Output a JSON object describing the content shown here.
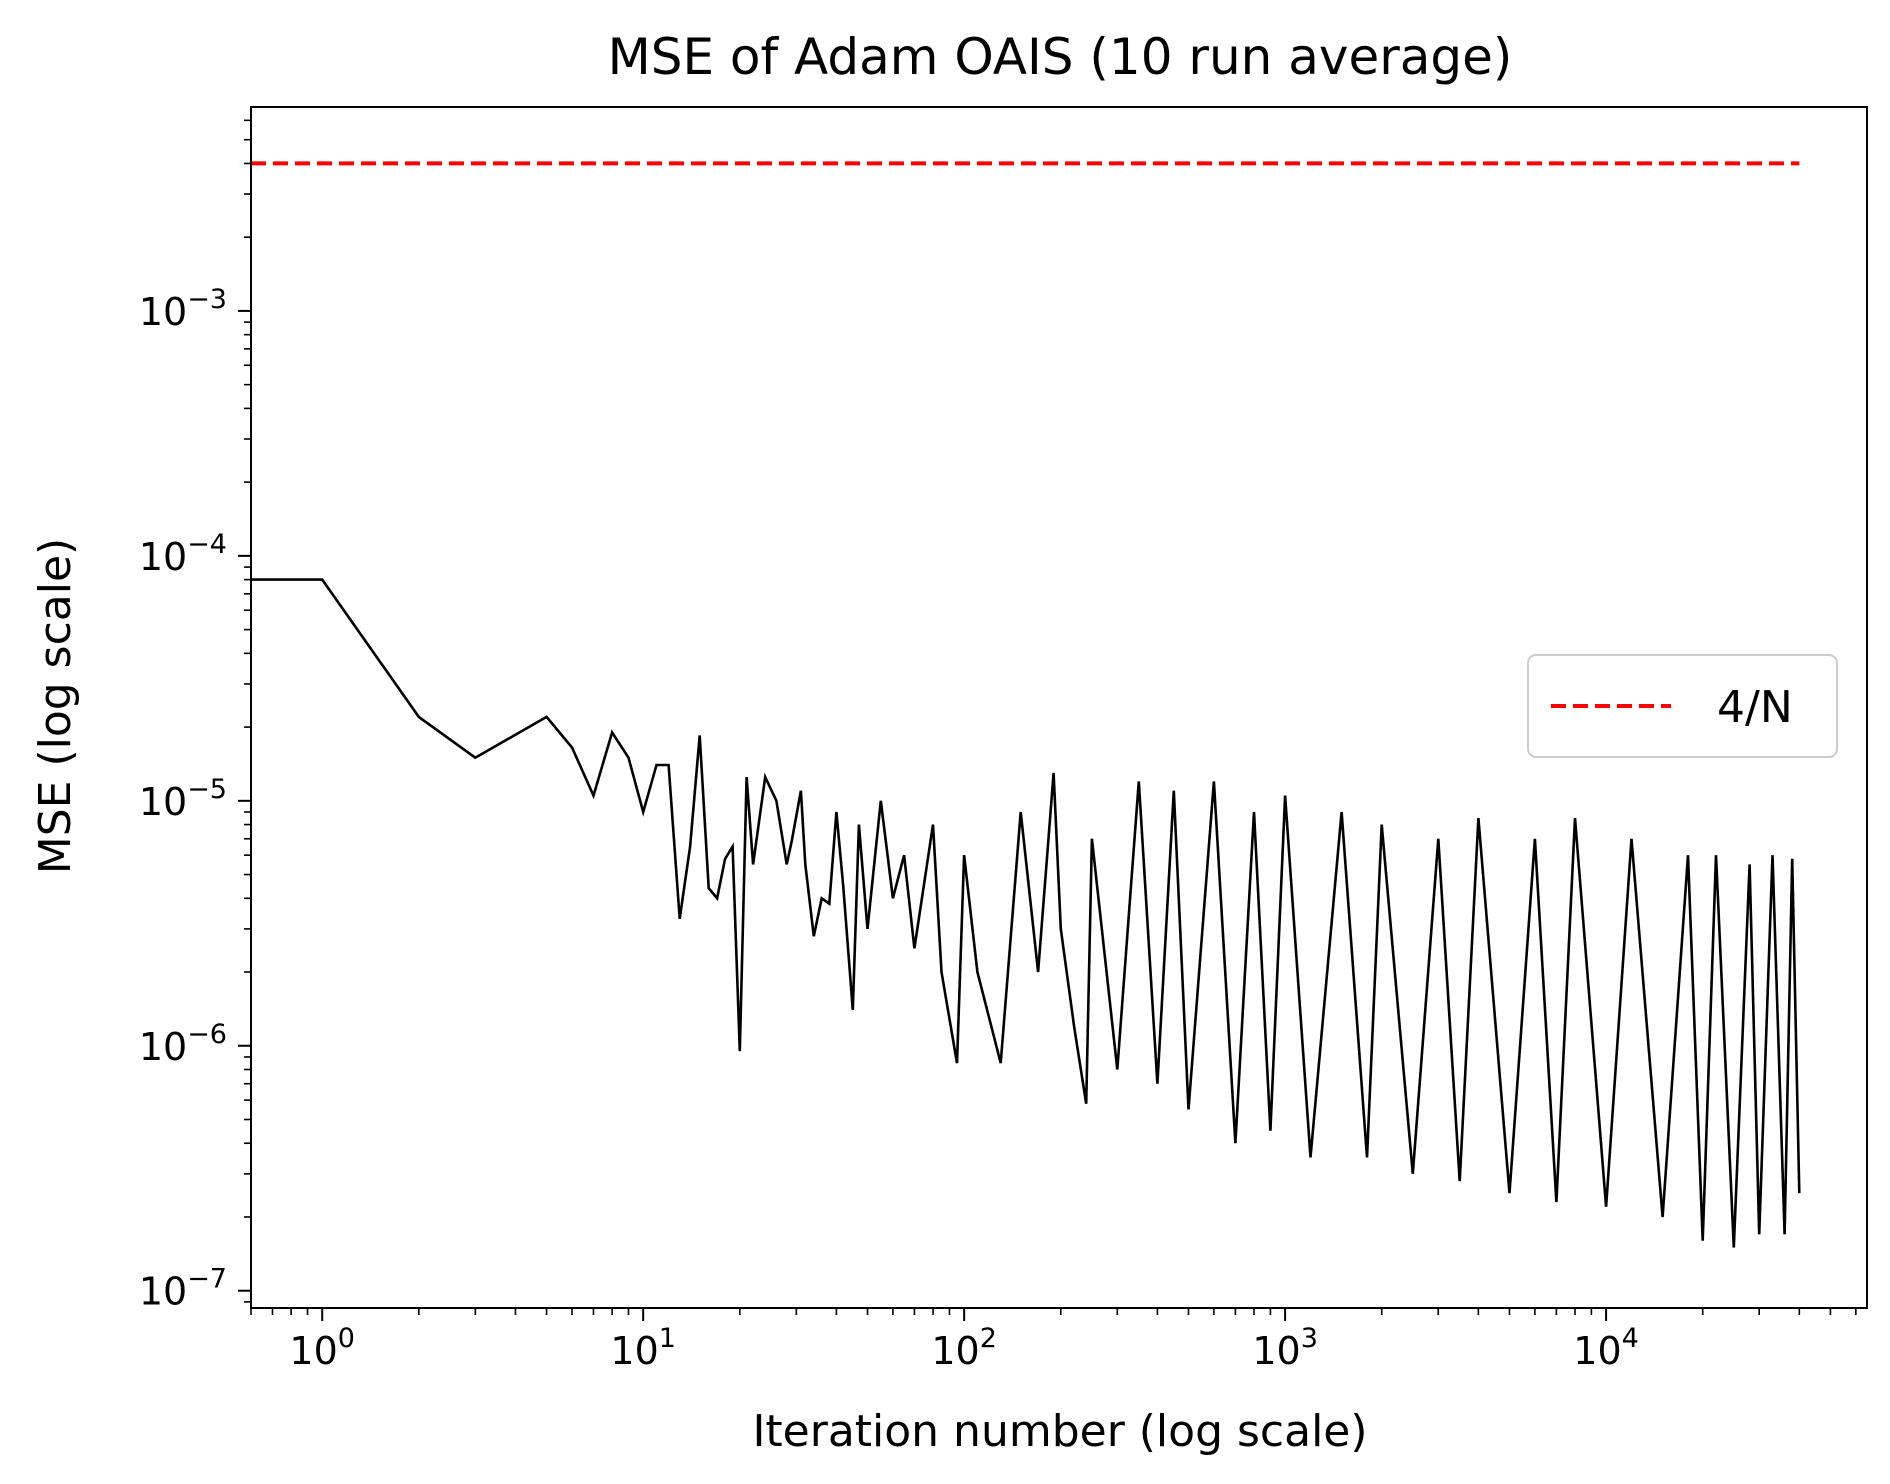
{
  "chart_data": {
    "type": "line",
    "title": "MSE of Adam OAIS (10 run average)",
    "xlabel": "Iteration number (log scale)",
    "ylabel": "MSE (log scale)",
    "xscale": "log",
    "yscale": "log",
    "xlim": [
      0.6,
      65000
    ],
    "ylim": [
      8.5e-08,
      0.0068
    ],
    "grid": false,
    "legend": {
      "placement": "center-right",
      "entries": [
        "4/N"
      ]
    },
    "x_ticks": [
      {
        "value": 1,
        "base": "10",
        "exp": "0"
      },
      {
        "value": 10,
        "base": "10",
        "exp": "1"
      },
      {
        "value": 100,
        "base": "10",
        "exp": "2"
      },
      {
        "value": 1000,
        "base": "10",
        "exp": "3"
      },
      {
        "value": 10000,
        "base": "10",
        "exp": "4"
      }
    ],
    "y_ticks": [
      {
        "value": 1e-07,
        "base": "10",
        "exp": "−7"
      },
      {
        "value": 1e-06,
        "base": "10",
        "exp": "−6"
      },
      {
        "value": 1e-05,
        "base": "10",
        "exp": "−5"
      },
      {
        "value": 0.0001,
        "base": "10",
        "exp": "−4"
      },
      {
        "value": 0.001,
        "base": "10",
        "exp": "−3"
      }
    ],
    "series": [
      {
        "name": "4/N",
        "style": "dashed",
        "color": "#ff0000",
        "x": [
          0.6,
          40000
        ],
        "y": [
          0.004,
          0.004
        ]
      },
      {
        "style": "solid",
        "color": "#000000",
        "x": [
          0.6,
          1,
          2,
          3,
          5,
          6,
          7,
          8,
          9,
          10,
          11,
          12,
          13,
          14,
          15,
          16,
          17,
          18,
          19,
          20,
          21,
          22,
          24,
          26,
          28,
          29,
          31,
          32,
          34,
          36,
          38,
          40,
          42,
          45,
          47,
          50,
          55,
          60,
          65,
          70,
          80,
          85,
          95,
          100,
          110,
          130,
          150,
          170,
          190,
          200,
          220,
          240,
          250,
          300,
          350,
          400,
          450,
          500,
          600,
          700,
          800,
          900,
          1000,
          1200,
          1500,
          1800,
          2000,
          2500,
          3000,
          3500,
          4000,
          5000,
          6000,
          7000,
          8000,
          10000,
          12000,
          15000,
          18000,
          20000,
          22000,
          25000,
          28000,
          30000,
          33000,
          36000,
          38000,
          40000
        ],
        "y": [
          8e-05,
          8e-05,
          2.2e-05,
          1.5e-05,
          2.2e-05,
          1.65e-05,
          1.05e-05,
          1.9e-05,
          1.5e-05,
          9e-06,
          1.4e-05,
          1.4e-05,
          3.3e-06,
          6.5e-06,
          1.85e-05,
          4.4e-06,
          4e-06,
          5.8e-06,
          6.5e-06,
          9.5e-07,
          1.25e-05,
          5.5e-06,
          1.25e-05,
          1e-05,
          5.5e-06,
          6.8e-06,
          1.1e-05,
          5.5e-06,
          2.8e-06,
          4e-06,
          3.8e-06,
          9e-06,
          4.5e-06,
          1.4e-06,
          8e-06,
          3e-06,
          1e-05,
          4e-06,
          6e-06,
          2.5e-06,
          8e-06,
          2e-06,
          8.5e-07,
          6e-06,
          2e-06,
          8.5e-07,
          9e-06,
          2e-06,
          1.3e-05,
          3e-06,
          1.2e-06,
          5.8e-07,
          7e-06,
          8e-07,
          1.2e-05,
          7e-07,
          1.1e-05,
          5.5e-07,
          1.2e-05,
          4e-07,
          9e-06,
          4.5e-07,
          1.05e-05,
          3.5e-07,
          9e-06,
          3.5e-07,
          8e-06,
          3e-07,
          7e-06,
          2.8e-07,
          8.5e-06,
          2.5e-07,
          7e-06,
          2.3e-07,
          8.5e-06,
          2.2e-07,
          7e-06,
          2e-07,
          6e-06,
          1.6e-07,
          6e-06,
          1.5e-07,
          5.5e-06,
          1.7e-07,
          6e-06,
          1.7e-07,
          5.8e-06,
          2.5e-07
        ]
      }
    ]
  }
}
